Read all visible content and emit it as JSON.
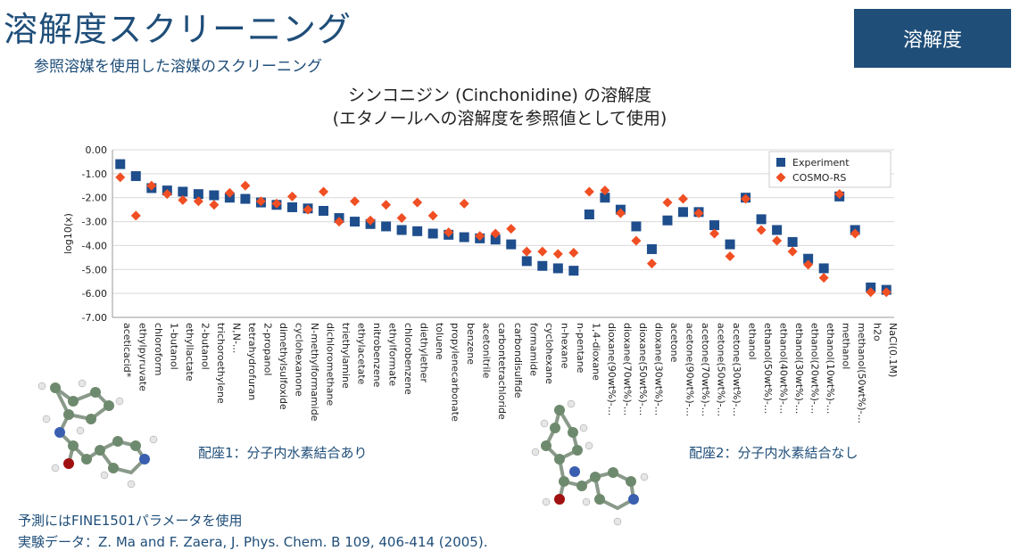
{
  "header": {
    "title": "溶解度スクリーニング",
    "subtitle": "参照溶媒を使用した溶媒のスクリーニング",
    "badge": "溶解度"
  },
  "chart_title": {
    "line1": "シンコニジン (Cinchonidine) の溶解度",
    "line2": "(エタノールへの溶解度を参照値として使用)"
  },
  "chart_data": {
    "type": "scatter",
    "title": "シンコニジン (Cinchonidine) の溶解度",
    "ylabel": "log10(x)",
    "xlabel": "",
    "ylim": [
      -7.0,
      0.0
    ],
    "yticks": [
      0,
      -1,
      -2,
      -3,
      -4,
      -5,
      -6,
      -7
    ],
    "ytick_labels": [
      "0.00",
      "-1.00",
      "-2.00",
      "-3.00",
      "-4.00",
      "-5.00",
      "-6.00",
      "-7.00"
    ],
    "legend": "top-right",
    "categories": [
      "aceticacid*",
      "ethylpyruvate",
      "chloroform",
      "1-butanol",
      "ethyllactate",
      "2-butanol",
      "trichoroethylene",
      "N,N-...",
      "tetrahydrofuran",
      "2-propanol",
      "dimethylsulfoxide",
      "cyclohexanone",
      "N-methylformamide",
      "dichloromethane",
      "triethylamine",
      "ethylacetate",
      "nitrobenzene",
      "ethylformate",
      "chlorobenzene",
      "diethylether",
      "toluene",
      "propylenecarbonate",
      "benzene",
      "acetonitrile",
      "carbontetrachloride",
      "carbondisulfide",
      "formamide",
      "cyclohexane",
      "n-hexane",
      "n-pentane",
      "1,4-dioxane",
      "dioxane(90wt%)-...",
      "dioxane(70wt%)-...",
      "dioxane(50wt%)-...",
      "dioxane(30wt%)-...",
      "acetone",
      "acetone(90wt%)-...",
      "acetone(70wt%)-...",
      "acetone(50wt%)-...",
      "acetone(30wt%)-...",
      "ethanol",
      "ethanol(50wt%)-...",
      "ethanol(40wt%)-...",
      "ethanol(30wt%)-...",
      "ethanol(20wt%)-...",
      "ethanol(10wt%)-...",
      "methanol",
      "methanol(50wt%)-...",
      "h2o",
      "NaCl(0.1M)"
    ],
    "series": [
      {
        "name": "Experiment",
        "marker": "square",
        "color": "#1f4e8c",
        "values": [
          -0.6,
          -1.1,
          -1.6,
          -1.7,
          -1.75,
          -1.85,
          -1.9,
          -2.0,
          -2.05,
          -2.2,
          -2.3,
          -2.4,
          -2.45,
          -2.55,
          -2.85,
          -3.0,
          -3.1,
          -3.2,
          -3.35,
          -3.4,
          -3.5,
          -3.55,
          -3.65,
          -3.7,
          -3.75,
          -3.95,
          -4.65,
          -4.85,
          -4.95,
          -5.05,
          -2.7,
          -2.0,
          -2.5,
          -3.2,
          -4.15,
          -2.95,
          -2.6,
          -2.6,
          -3.15,
          -3.95,
          -2.0,
          -2.9,
          -3.35,
          -3.85,
          -4.55,
          -4.95,
          -1.95,
          -3.35,
          -5.75,
          -5.85
        ]
      },
      {
        "name": "COSMO-RS",
        "marker": "diamond",
        "color": "#f04e23",
        "values": [
          -1.15,
          -2.75,
          -1.5,
          -1.85,
          -2.1,
          -2.15,
          -2.3,
          -1.8,
          -1.5,
          -2.15,
          -2.25,
          -1.95,
          -2.5,
          -1.75,
          -3.0,
          -2.15,
          -2.95,
          -2.3,
          -2.85,
          -2.2,
          -2.75,
          -3.45,
          -2.25,
          -3.6,
          -3.5,
          -3.3,
          -4.25,
          -4.25,
          -4.35,
          -4.3,
          -1.75,
          -1.7,
          -2.65,
          -3.8,
          -4.75,
          -2.2,
          -2.05,
          -2.65,
          -3.5,
          -4.45,
          -2.05,
          -3.35,
          -3.8,
          -4.25,
          -4.8,
          -5.35,
          -1.85,
          -3.5,
          -5.95,
          -5.95
        ]
      }
    ]
  },
  "captions": {
    "conf1": "配座1：分子内水素結合あり",
    "conf2": "配座2：分子内水素結合なし"
  },
  "notes": {
    "line1": "予測にはFINE1501パラメータを使用",
    "line2": "実験データ：Z. Ma and F. Zaera, J. Phys. Chem. B 109, 406-414 (2005)."
  }
}
